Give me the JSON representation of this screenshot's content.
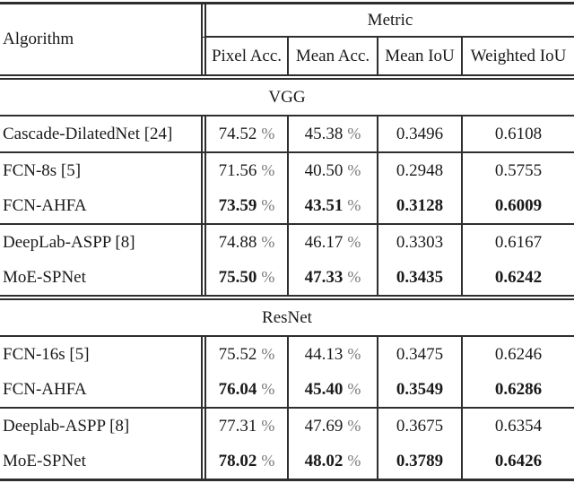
{
  "pct": "%",
  "header": {
    "algorithm": "Algorithm",
    "metric": "Metric",
    "cols": [
      "Pixel Acc.",
      "Mean Acc.",
      "Mean IoU",
      "Weighted IoU"
    ]
  },
  "sections": [
    {
      "title": "VGG",
      "groups": [
        {
          "rows": [
            {
              "name": "Cascade-DilatedNet [24]",
              "values": [
                "74.52",
                "45.38",
                "0.3496",
                "0.6108"
              ],
              "bold": false
            }
          ]
        },
        {
          "rows": [
            {
              "name": "FCN-8s [5]",
              "values": [
                "71.56",
                "40.50",
                "0.2948",
                "0.5755"
              ],
              "bold": false
            },
            {
              "name": "FCN-AHFA",
              "values": [
                "73.59",
                "43.51",
                "0.3128",
                "0.6009"
              ],
              "bold": true
            }
          ]
        },
        {
          "rows": [
            {
              "name": "DeepLab-ASPP [8]",
              "values": [
                "74.88",
                "46.17",
                "0.3303",
                "0.6167"
              ],
              "bold": false
            },
            {
              "name": "MoE-SPNet",
              "values": [
                "75.50",
                "47.33",
                "0.3435",
                "0.6242"
              ],
              "bold": true
            }
          ]
        }
      ]
    },
    {
      "title": "ResNet",
      "groups": [
        {
          "rows": [
            {
              "name": "FCN-16s [5]",
              "values": [
                "75.52",
                "44.13",
                "0.3475",
                "0.6246"
              ],
              "bold": false
            },
            {
              "name": "FCN-AHFA",
              "values": [
                "76.04",
                "45.40",
                "0.3549",
                "0.6286"
              ],
              "bold": true
            }
          ]
        },
        {
          "rows": [
            {
              "name": "Deeplab-ASPP [8]",
              "values": [
                "77.31",
                "47.69",
                "0.3675",
                "0.6354"
              ],
              "bold": false
            },
            {
              "name": "MoE-SPNet",
              "values": [
                "78.02",
                "48.02",
                "0.3789",
                "0.6426"
              ],
              "bold": true
            }
          ]
        }
      ]
    }
  ]
}
